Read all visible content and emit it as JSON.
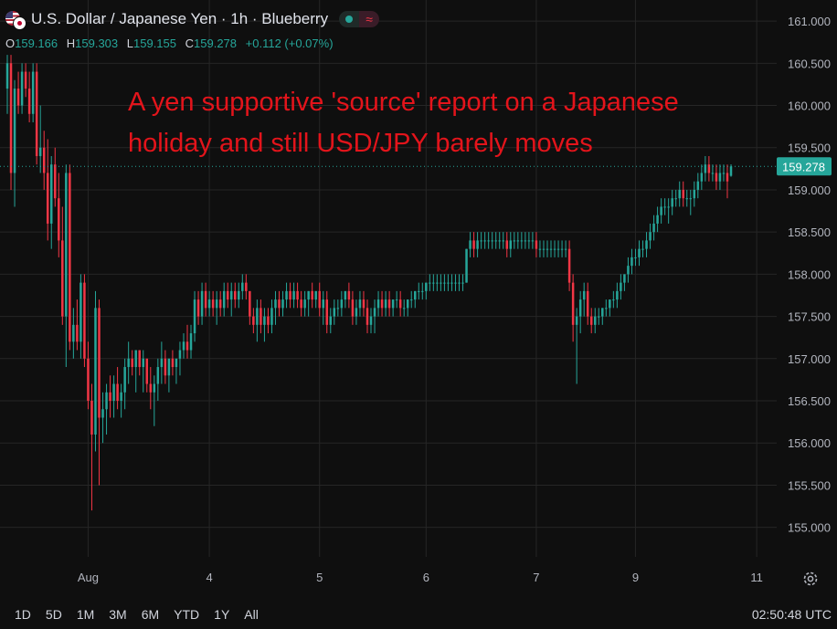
{
  "header": {
    "title": "U.S. Dollar / Japanese Yen · 1h · Blueberry",
    "ohlc": [
      {
        "key": "O",
        "value": "159.166"
      },
      {
        "key": "H",
        "value": "159.303"
      },
      {
        "key": "L",
        "value": "159.155"
      },
      {
        "key": "C",
        "value": "159.278"
      }
    ],
    "change": "+0.112 (+0.07%)",
    "badge_wave": "≈"
  },
  "annotation": "A yen supportive 'source' report on a Japanese holiday and still USD/JPY barely moves",
  "toolbar": {
    "timeframes": [
      "1D",
      "5D",
      "1M",
      "3M",
      "6M",
      "YTD",
      "1Y",
      "All"
    ],
    "clock": "02:50:48 UTC"
  },
  "icons": {
    "settings": "gear-icon"
  },
  "colors": {
    "bg": "#0f0f0f",
    "up": "#26a69a",
    "down": "#f23645",
    "grid": "#262626",
    "annotation": "#e3141b"
  },
  "chart_data": {
    "type": "candlestick",
    "ylim": [
      154.65,
      161.25
    ],
    "y_ticks": [
      "161.000",
      "160.500",
      "160.000",
      "159.500",
      "159.000",
      "158.500",
      "158.000",
      "157.500",
      "157.000",
      "156.500",
      "156.000",
      "155.500",
      "155.000"
    ],
    "x_labels": [
      {
        "label": "Aug",
        "index": 22
      },
      {
        "label": "4",
        "index": 55
      },
      {
        "label": "5",
        "index": 85
      },
      {
        "label": "6",
        "index": 114
      },
      {
        "label": "7",
        "index": 144
      },
      {
        "label": "9",
        "index": 171
      },
      {
        "label": "11",
        "index": 204
      }
    ],
    "current_price": "159.278",
    "grid": true,
    "candles": [
      [
        160.2,
        160.6,
        159.9,
        160.5
      ],
      [
        160.5,
        160.6,
        159.0,
        159.2
      ],
      [
        159.2,
        160.3,
        158.8,
        160.2
      ],
      [
        160.2,
        160.4,
        159.9,
        160.0
      ],
      [
        160.0,
        160.5,
        159.9,
        160.4
      ],
      [
        160.4,
        160.5,
        160.1,
        160.2
      ],
      [
        160.2,
        160.4,
        159.8,
        159.9
      ],
      [
        159.9,
        160.5,
        159.8,
        160.4
      ],
      [
        160.4,
        160.5,
        159.3,
        159.4
      ],
      [
        159.4,
        160.0,
        159.2,
        159.5
      ],
      [
        159.5,
        159.7,
        159.0,
        159.2
      ],
      [
        159.2,
        159.6,
        158.4,
        158.6
      ],
      [
        158.6,
        159.4,
        158.3,
        159.3
      ],
      [
        159.3,
        159.5,
        158.8,
        158.9
      ],
      [
        158.9,
        159.2,
        158.2,
        158.4
      ],
      [
        158.4,
        158.8,
        157.4,
        157.5
      ],
      [
        157.5,
        159.3,
        156.9,
        159.2
      ],
      [
        159.2,
        159.3,
        157.1,
        157.2
      ],
      [
        157.2,
        157.6,
        157.0,
        157.4
      ],
      [
        157.4,
        157.7,
        157.1,
        157.2
      ],
      [
        157.2,
        158.0,
        157.0,
        157.9
      ],
      [
        157.9,
        158.0,
        156.9,
        157.0
      ],
      [
        157.0,
        157.2,
        156.4,
        156.5
      ],
      [
        156.5,
        156.7,
        155.2,
        156.1
      ],
      [
        156.1,
        157.8,
        155.9,
        157.6
      ],
      [
        157.6,
        157.7,
        155.5,
        156.3
      ],
      [
        156.3,
        156.6,
        156.0,
        156.4
      ],
      [
        156.4,
        156.7,
        156.1,
        156.6
      ],
      [
        156.6,
        156.8,
        156.3,
        156.5
      ],
      [
        156.5,
        156.8,
        156.3,
        156.7
      ],
      [
        156.7,
        156.9,
        156.4,
        156.5
      ],
      [
        156.5,
        156.7,
        156.3,
        156.6
      ],
      [
        156.6,
        157.0,
        156.4,
        156.9
      ],
      [
        156.9,
        157.2,
        156.7,
        157.0
      ],
      [
        157.0,
        157.1,
        156.8,
        156.9
      ],
      [
        156.9,
        157.1,
        156.6,
        157.1
      ],
      [
        157.1,
        157.1,
        156.8,
        156.9
      ],
      [
        156.9,
        157.1,
        156.6,
        157.0
      ],
      [
        157.0,
        157.0,
        156.6,
        156.7
      ],
      [
        156.7,
        156.9,
        156.4,
        156.6
      ],
      [
        156.6,
        156.8,
        156.2,
        156.7
      ],
      [
        156.7,
        157.0,
        156.5,
        156.9
      ],
      [
        156.9,
        157.2,
        156.7,
        157.0
      ],
      [
        157.0,
        157.1,
        156.7,
        156.8
      ],
      [
        156.8,
        157.0,
        156.6,
        157.0
      ],
      [
        157.0,
        157.1,
        156.8,
        156.9
      ],
      [
        156.9,
        157.0,
        156.7,
        157.0
      ],
      [
        157.0,
        157.2,
        156.8,
        157.1
      ],
      [
        157.1,
        157.3,
        157.0,
        157.2
      ],
      [
        157.2,
        157.4,
        157.0,
        157.1
      ],
      [
        157.1,
        157.4,
        157.0,
        157.3
      ],
      [
        157.3,
        157.8,
        157.2,
        157.7
      ],
      [
        157.7,
        157.8,
        157.4,
        157.5
      ],
      [
        157.5,
        157.9,
        157.4,
        157.8
      ],
      [
        157.8,
        157.9,
        157.5,
        157.6
      ],
      [
        157.6,
        157.8,
        157.5,
        157.7
      ],
      [
        157.7,
        157.8,
        157.5,
        157.6
      ],
      [
        157.6,
        157.8,
        157.4,
        157.7
      ],
      [
        157.7,
        157.8,
        157.5,
        157.6
      ],
      [
        157.6,
        157.9,
        157.5,
        157.8
      ],
      [
        157.8,
        157.9,
        157.6,
        157.7
      ],
      [
        157.7,
        157.9,
        157.5,
        157.8
      ],
      [
        157.8,
        157.9,
        157.6,
        157.7
      ],
      [
        157.7,
        157.9,
        157.6,
        157.8
      ],
      [
        157.8,
        158.0,
        157.7,
        157.9
      ],
      [
        157.9,
        158.0,
        157.7,
        157.8
      ],
      [
        157.8,
        157.8,
        157.4,
        157.5
      ],
      [
        157.5,
        157.6,
        157.3,
        157.4
      ],
      [
        157.4,
        157.7,
        157.2,
        157.6
      ],
      [
        157.6,
        157.7,
        157.3,
        157.4
      ],
      [
        157.4,
        157.6,
        157.2,
        157.5
      ],
      [
        157.5,
        157.6,
        157.3,
        157.4
      ],
      [
        157.4,
        157.7,
        157.3,
        157.6
      ],
      [
        157.6,
        157.8,
        157.4,
        157.7
      ],
      [
        157.7,
        157.8,
        157.5,
        157.6
      ],
      [
        157.6,
        157.8,
        157.5,
        157.7
      ],
      [
        157.7,
        157.9,
        157.6,
        157.8
      ],
      [
        157.8,
        157.9,
        157.6,
        157.7
      ],
      [
        157.7,
        157.9,
        157.6,
        157.8
      ],
      [
        157.8,
        157.9,
        157.6,
        157.7
      ],
      [
        157.7,
        157.8,
        157.5,
        157.6
      ],
      [
        157.6,
        157.8,
        157.5,
        157.7
      ],
      [
        157.7,
        157.8,
        157.5,
        157.8
      ],
      [
        157.8,
        157.9,
        157.6,
        157.7
      ],
      [
        157.7,
        157.8,
        157.6,
        157.8
      ],
      [
        157.8,
        157.9,
        157.5,
        157.6
      ],
      [
        157.6,
        157.8,
        157.4,
        157.7
      ],
      [
        157.7,
        157.8,
        157.3,
        157.4
      ],
      [
        157.4,
        157.6,
        157.3,
        157.5
      ],
      [
        157.5,
        157.7,
        157.4,
        157.6
      ],
      [
        157.6,
        157.7,
        157.5,
        157.6
      ],
      [
        157.6,
        157.8,
        157.5,
        157.7
      ],
      [
        157.7,
        157.8,
        157.6,
        157.8
      ],
      [
        157.8,
        157.9,
        157.6,
        157.7
      ],
      [
        157.7,
        157.8,
        157.4,
        157.5
      ],
      [
        157.5,
        157.7,
        157.4,
        157.6
      ],
      [
        157.6,
        157.8,
        157.5,
        157.7
      ],
      [
        157.7,
        157.8,
        157.5,
        157.6
      ],
      [
        157.6,
        157.7,
        157.3,
        157.4
      ],
      [
        157.4,
        157.6,
        157.3,
        157.5
      ],
      [
        157.5,
        157.7,
        157.3,
        157.6
      ],
      [
        157.6,
        157.8,
        157.5,
        157.7
      ],
      [
        157.7,
        157.8,
        157.5,
        157.6
      ],
      [
        157.6,
        157.8,
        157.5,
        157.7
      ],
      [
        157.7,
        157.8,
        157.5,
        157.6
      ],
      [
        157.6,
        157.7,
        157.5,
        157.7
      ],
      [
        157.7,
        157.8,
        157.6,
        157.7
      ],
      [
        157.7,
        157.8,
        157.5,
        157.6
      ],
      [
        157.6,
        157.7,
        157.5,
        157.6
      ],
      [
        157.6,
        157.7,
        157.5,
        157.7
      ],
      [
        157.7,
        157.8,
        157.6,
        157.7
      ],
      [
        157.7,
        157.8,
        157.6,
        157.8
      ],
      [
        157.8,
        157.9,
        157.7,
        157.8
      ],
      [
        157.8,
        157.9,
        157.7,
        157.8
      ],
      [
        157.8,
        157.9,
        157.7,
        157.9
      ],
      [
        157.9,
        158.0,
        157.8,
        157.9
      ],
      [
        157.9,
        158.0,
        157.8,
        157.9
      ],
      [
        157.9,
        158.0,
        157.8,
        157.9
      ],
      [
        157.9,
        158.0,
        157.8,
        157.9
      ],
      [
        157.9,
        158.0,
        157.8,
        157.9
      ],
      [
        157.9,
        158.0,
        157.8,
        157.9
      ],
      [
        157.9,
        158.0,
        157.8,
        157.9
      ],
      [
        157.9,
        158.0,
        157.8,
        157.9
      ],
      [
        157.9,
        158.0,
        157.8,
        157.9
      ],
      [
        157.9,
        158.0,
        157.8,
        157.9
      ],
      [
        157.9,
        158.3,
        157.9,
        158.3
      ],
      [
        158.3,
        158.5,
        158.2,
        158.4
      ],
      [
        158.4,
        158.5,
        158.2,
        158.3
      ],
      [
        158.3,
        158.5,
        158.2,
        158.4
      ],
      [
        158.4,
        158.5,
        158.3,
        158.4
      ],
      [
        158.4,
        158.5,
        158.3,
        158.4
      ],
      [
        158.4,
        158.5,
        158.3,
        158.4
      ],
      [
        158.4,
        158.5,
        158.3,
        158.4
      ],
      [
        158.4,
        158.5,
        158.3,
        158.4
      ],
      [
        158.4,
        158.5,
        158.3,
        158.4
      ],
      [
        158.4,
        158.5,
        158.3,
        158.4
      ],
      [
        158.4,
        158.5,
        158.2,
        158.3
      ],
      [
        158.3,
        158.5,
        158.2,
        158.4
      ],
      [
        158.4,
        158.5,
        158.3,
        158.4
      ],
      [
        158.4,
        158.5,
        158.3,
        158.4
      ],
      [
        158.4,
        158.5,
        158.3,
        158.4
      ],
      [
        158.4,
        158.5,
        158.3,
        158.4
      ],
      [
        158.4,
        158.5,
        158.3,
        158.4
      ],
      [
        158.4,
        158.5,
        158.3,
        158.4
      ],
      [
        158.4,
        158.5,
        158.2,
        158.3
      ],
      [
        158.3,
        158.4,
        158.2,
        158.3
      ],
      [
        158.3,
        158.4,
        158.2,
        158.3
      ],
      [
        158.3,
        158.4,
        158.2,
        158.3
      ],
      [
        158.3,
        158.4,
        158.2,
        158.3
      ],
      [
        158.3,
        158.4,
        158.2,
        158.3
      ],
      [
        158.3,
        158.4,
        158.2,
        158.3
      ],
      [
        158.3,
        158.4,
        158.2,
        158.3
      ],
      [
        158.3,
        158.4,
        158.2,
        158.3
      ],
      [
        158.3,
        158.4,
        157.8,
        157.9
      ],
      [
        157.9,
        158.0,
        157.2,
        157.4
      ],
      [
        157.4,
        157.6,
        156.7,
        157.5
      ],
      [
        157.5,
        157.8,
        157.3,
        157.7
      ],
      [
        157.7,
        157.9,
        157.5,
        157.8
      ],
      [
        157.8,
        157.9,
        157.4,
        157.5
      ],
      [
        157.5,
        157.6,
        157.3,
        157.4
      ],
      [
        157.4,
        157.6,
        157.3,
        157.5
      ],
      [
        157.5,
        157.6,
        157.4,
        157.5
      ],
      [
        157.5,
        157.6,
        157.4,
        157.6
      ],
      [
        157.6,
        157.7,
        157.5,
        157.6
      ],
      [
        157.6,
        157.7,
        157.5,
        157.7
      ],
      [
        157.7,
        157.8,
        157.6,
        157.7
      ],
      [
        157.7,
        157.9,
        157.6,
        157.8
      ],
      [
        157.8,
        158.0,
        157.7,
        157.9
      ],
      [
        157.9,
        158.0,
        157.8,
        158.0
      ],
      [
        158.0,
        158.2,
        157.9,
        158.1
      ],
      [
        158.1,
        158.3,
        158.0,
        158.2
      ],
      [
        158.2,
        158.3,
        158.1,
        158.2
      ],
      [
        158.2,
        158.4,
        158.1,
        158.3
      ],
      [
        158.3,
        158.4,
        158.2,
        158.3
      ],
      [
        158.3,
        158.5,
        158.2,
        158.4
      ],
      [
        158.4,
        158.6,
        158.3,
        158.5
      ],
      [
        158.5,
        158.7,
        158.4,
        158.6
      ],
      [
        158.6,
        158.8,
        158.5,
        158.7
      ],
      [
        158.7,
        158.9,
        158.6,
        158.8
      ],
      [
        158.8,
        158.9,
        158.7,
        158.8
      ],
      [
        158.8,
        158.9,
        158.6,
        158.8
      ],
      [
        158.8,
        159.0,
        158.7,
        158.9
      ],
      [
        158.9,
        159.0,
        158.8,
        158.9
      ],
      [
        158.9,
        159.1,
        158.8,
        159.0
      ],
      [
        159.0,
        159.1,
        158.8,
        158.9
      ],
      [
        158.9,
        159.0,
        158.8,
        158.9
      ],
      [
        158.9,
        159.0,
        158.7,
        158.9
      ],
      [
        158.9,
        159.1,
        158.8,
        159.0
      ],
      [
        159.0,
        159.2,
        158.9,
        159.1
      ],
      [
        159.1,
        159.3,
        159.0,
        159.2
      ],
      [
        159.2,
        159.4,
        159.1,
        159.3
      ],
      [
        159.3,
        159.4,
        159.1,
        159.2
      ],
      [
        159.2,
        159.3,
        159.1,
        159.2
      ],
      [
        159.2,
        159.3,
        159.0,
        159.1
      ],
      [
        159.1,
        159.3,
        159.0,
        159.2
      ],
      [
        159.2,
        159.3,
        159.1,
        159.2
      ],
      [
        159.2,
        159.3,
        158.9,
        159.1
      ],
      [
        159.166,
        159.303,
        159.155,
        159.278
      ]
    ]
  }
}
